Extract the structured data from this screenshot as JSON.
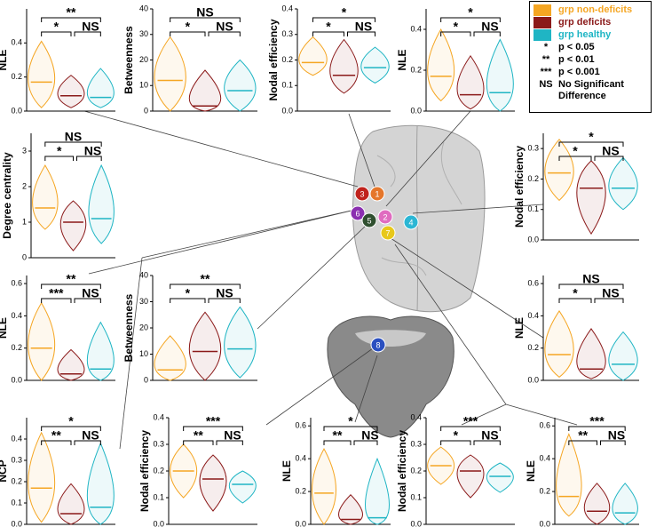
{
  "legend": {
    "groups": [
      {
        "name": "grp non-deficits",
        "color": "#f5a623"
      },
      {
        "name": "grp deficits",
        "color": "#8b1a1a"
      },
      {
        "name": "grp healthy",
        "color": "#1fb5c4"
      }
    ],
    "notes": [
      {
        "symbol": "*",
        "text": "p < 0.05"
      },
      {
        "symbol": "**",
        "text": "p < 0.01"
      },
      {
        "symbol": "***",
        "text": "p < 0.001"
      },
      {
        "symbol": "NS",
        "text": "No Significant Difference"
      }
    ]
  },
  "regions": [
    {
      "label": "3",
      "color": "#c0221c"
    },
    {
      "label": "1",
      "color": "#e5762a"
    },
    {
      "label": "6",
      "color": "#8a2fb0"
    },
    {
      "label": "2",
      "color": "#e06cc0"
    },
    {
      "label": "4",
      "color": "#2bb6d4"
    },
    {
      "label": "5",
      "color": "#2f4f2f"
    },
    {
      "label": "7",
      "color": "#e8c81a"
    },
    {
      "label": "8",
      "color": "#2a4fc0"
    }
  ],
  "chart_data": [
    {
      "type": "violin",
      "ylabel": "NLE",
      "ylim": [
        0,
        0.6
      ],
      "yticks": [
        {
          "value": 0,
          "label": "0.0"
        },
        0.2,
        0.4
      ],
      "significance": [
        "**",
        "*",
        "NS"
      ],
      "medians": [
        0.17,
        0.09,
        0.08
      ],
      "mins": [
        0.02,
        0.02,
        0.02
      ],
      "maxs": [
        0.41,
        0.21,
        0.25
      ]
    },
    {
      "type": "violin",
      "ylabel": "Betweenness",
      "ylim": [
        0,
        40
      ],
      "yticks": [
        0,
        10,
        20,
        30,
        40
      ],
      "significance": [
        "NS",
        "*",
        "NS"
      ],
      "medians": [
        12,
        2,
        8
      ],
      "mins": [
        0,
        0,
        0
      ],
      "maxs": [
        29,
        16,
        20
      ]
    },
    {
      "type": "violin",
      "ylabel": "Nodal efficiency",
      "ylim": [
        0,
        0.4
      ],
      "yticks": [
        {
          "value": 0,
          "label": "0.0"
        },
        0.1,
        0.2,
        0.3,
        0.4
      ],
      "significance": [
        "*",
        "*",
        "NS"
      ],
      "medians": [
        0.19,
        0.14,
        0.17
      ],
      "mins": [
        0.14,
        0.07,
        0.11
      ],
      "maxs": [
        0.29,
        0.28,
        0.25
      ]
    },
    {
      "type": "violin",
      "ylabel": "NLE",
      "ylim": [
        0,
        0.5
      ],
      "yticks": [
        {
          "value": 0,
          "label": "0.0"
        },
        0.2,
        0.4
      ],
      "significance": [
        "*",
        "*",
        "NS"
      ],
      "medians": [
        0.17,
        0.08,
        0.09
      ],
      "mins": [
        0.05,
        0.01,
        0
      ],
      "maxs": [
        0.4,
        0.27,
        0.35
      ]
    },
    {
      "type": "violin",
      "ylabel": "Degree centrality",
      "ylim": [
        0,
        3.5
      ],
      "yticks": [
        0,
        1,
        2,
        3
      ],
      "significance": [
        "NS",
        "*",
        "NS"
      ],
      "medians": [
        1.4,
        1.0,
        1.1
      ],
      "mins": [
        0.8,
        0.2,
        0.4
      ],
      "maxs": [
        2.6,
        1.6,
        2.6
      ]
    },
    {
      "type": "violin",
      "ylabel": "Nodal efficiency",
      "ylim": [
        0,
        0.35
      ],
      "yticks": [
        {
          "value": 0,
          "label": "0.0"
        },
        0.1,
        0.2,
        0.3
      ],
      "significance": [
        "*",
        "*",
        "NS"
      ],
      "medians": [
        0.22,
        0.17,
        0.17
      ],
      "mins": [
        0.13,
        0.02,
        0.1
      ],
      "maxs": [
        0.33,
        0.26,
        0.27
      ]
    },
    {
      "type": "violin",
      "ylabel": "NLE",
      "ylim": [
        0,
        0.65
      ],
      "yticks": [
        {
          "value": 0,
          "label": "0.0"
        },
        0.2,
        0.4,
        0.6
      ],
      "significance": [
        "**",
        "***",
        "NS"
      ],
      "medians": [
        0.2,
        0.04,
        0.07
      ],
      "mins": [
        0,
        0,
        0
      ],
      "maxs": [
        0.48,
        0.19,
        0.36
      ]
    },
    {
      "type": "violin",
      "ylabel": "Betweenness",
      "ylim": [
        0,
        40
      ],
      "yticks": [
        0,
        10,
        20,
        30,
        40
      ],
      "significance": [
        "**",
        "*",
        "NS"
      ],
      "medians": [
        4,
        11,
        12
      ],
      "mins": [
        0,
        0,
        1
      ],
      "maxs": [
        17,
        26,
        28
      ]
    },
    {
      "type": "violin",
      "ylabel": "NLE",
      "ylim": [
        0,
        0.65
      ],
      "yticks": [
        {
          "value": 0,
          "label": "0.0"
        },
        0.2,
        0.4,
        0.6
      ],
      "significance": [
        "NS",
        "*",
        "NS"
      ],
      "medians": [
        0.16,
        0.07,
        0.1
      ],
      "mins": [
        0.02,
        0.01,
        0
      ],
      "maxs": [
        0.43,
        0.32,
        0.3
      ]
    },
    {
      "type": "violin",
      "ylabel": "NCP",
      "ylim": [
        0,
        0.5
      ],
      "yticks": [
        {
          "value": 0,
          "label": "0.0"
        },
        0.1,
        0.2,
        0.3,
        0.4
      ],
      "significance": [
        "*",
        "**",
        "NS"
      ],
      "medians": [
        0.17,
        0.05,
        0.08
      ],
      "mins": [
        0.01,
        0,
        0
      ],
      "maxs": [
        0.43,
        0.19,
        0.38
      ]
    },
    {
      "type": "violin",
      "ylabel": "Nodal efficiency",
      "ylim": [
        0,
        0.4
      ],
      "yticks": [
        {
          "value": 0,
          "label": "0.0"
        },
        0.1,
        0.2,
        0.3,
        0.4
      ],
      "significance": [
        "***",
        "**",
        "NS"
      ],
      "medians": [
        0.2,
        0.17,
        0.15
      ],
      "mins": [
        0.1,
        0.05,
        0.08
      ],
      "maxs": [
        0.3,
        0.26,
        0.2
      ]
    },
    {
      "type": "violin",
      "ylabel": "NLE",
      "ylim": [
        0,
        0.65
      ],
      "yticks": [
        {
          "value": 0,
          "label": "0.0"
        },
        0.2,
        0.4,
        0.6
      ],
      "significance": [
        "*",
        "**",
        "NS"
      ],
      "medians": [
        0.19,
        0.03,
        0.04
      ],
      "mins": [
        0,
        0,
        0
      ],
      "maxs": [
        0.46,
        0.18,
        0.4
      ]
    },
    {
      "type": "violin",
      "ylabel": "Nodal efficiency",
      "ylim": [
        0,
        0.4
      ],
      "yticks": [
        {
          "value": 0,
          "label": "0.0"
        },
        0.1,
        0.2,
        0.3,
        0.4
      ],
      "significance": [
        "***",
        "*",
        "NS"
      ],
      "medians": [
        0.22,
        0.2,
        0.18
      ],
      "mins": [
        0.15,
        0.1,
        0.12
      ],
      "maxs": [
        0.29,
        0.26,
        0.23
      ]
    },
    {
      "type": "violin",
      "ylabel": "NLE",
      "ylim": [
        0,
        0.65
      ],
      "yticks": [
        {
          "value": 0,
          "label": "0.0"
        },
        0.2,
        0.4,
        0.6
      ],
      "significance": [
        "***",
        "**",
        "NS"
      ],
      "medians": [
        0.17,
        0.08,
        0.07
      ],
      "mins": [
        0.05,
        0,
        0
      ],
      "maxs": [
        0.55,
        0.25,
        0.25
      ]
    }
  ]
}
